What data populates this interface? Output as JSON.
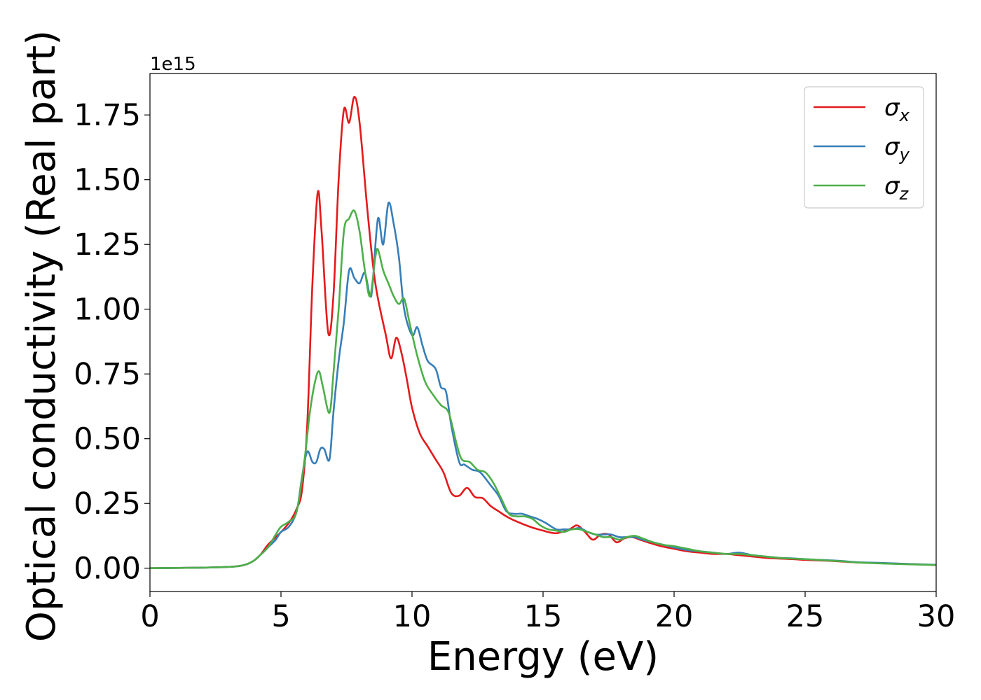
{
  "chart_data": {
    "type": "line",
    "xlabel": "Energy (eV)",
    "ylabel": "Optical conductivity (Real part)",
    "offset_text": "1e15",
    "xlim": [
      0,
      30
    ],
    "ylim": [
      -0.09,
      1.91
    ],
    "x_ticks": [
      0,
      5,
      10,
      15,
      20,
      25,
      30
    ],
    "x_tick_labels": [
      "0",
      "5",
      "10",
      "15",
      "20",
      "25",
      "30"
    ],
    "y_ticks": [
      0.0,
      0.25,
      0.5,
      0.75,
      1.0,
      1.25,
      1.5,
      1.75
    ],
    "y_tick_labels": [
      "0.00",
      "0.25",
      "0.50",
      "0.75",
      "1.00",
      "1.25",
      "1.50",
      "1.75"
    ],
    "y_scale_factor": "1e15",
    "grid": false,
    "legend_position": "top-right",
    "series": [
      {
        "name": "σx",
        "symbol": "σ",
        "subscript": "x",
        "color": "#e41a1c",
        "points": [
          [
            0,
            0
          ],
          [
            2,
            0.002
          ],
          [
            3,
            0.005
          ],
          [
            3.5,
            0.01
          ],
          [
            3.9,
            0.025
          ],
          [
            4.2,
            0.05
          ],
          [
            4.5,
            0.09
          ],
          [
            4.8,
            0.12
          ],
          [
            5.1,
            0.15
          ],
          [
            5.4,
            0.19
          ],
          [
            5.6,
            0.23
          ],
          [
            5.8,
            0.3
          ],
          [
            6.0,
            0.55
          ],
          [
            6.2,
            1.1
          ],
          [
            6.4,
            1.45
          ],
          [
            6.55,
            1.3
          ],
          [
            6.8,
            0.91
          ],
          [
            7.0,
            1.05
          ],
          [
            7.2,
            1.5
          ],
          [
            7.4,
            1.77
          ],
          [
            7.6,
            1.72
          ],
          [
            7.8,
            1.82
          ],
          [
            8.0,
            1.72
          ],
          [
            8.3,
            1.38
          ],
          [
            8.6,
            1.1
          ],
          [
            9.0,
            0.9
          ],
          [
            9.2,
            0.81
          ],
          [
            9.4,
            0.89
          ],
          [
            9.6,
            0.83
          ],
          [
            9.8,
            0.73
          ],
          [
            10.0,
            0.62
          ],
          [
            10.3,
            0.52
          ],
          [
            10.6,
            0.47
          ],
          [
            10.9,
            0.42
          ],
          [
            11.2,
            0.37
          ],
          [
            11.5,
            0.29
          ],
          [
            11.8,
            0.28
          ],
          [
            12.1,
            0.31
          ],
          [
            12.4,
            0.275
          ],
          [
            12.7,
            0.27
          ],
          [
            13.0,
            0.24
          ],
          [
            13.3,
            0.22
          ],
          [
            13.6,
            0.2
          ],
          [
            14.0,
            0.18
          ],
          [
            14.5,
            0.16
          ],
          [
            15.0,
            0.145
          ],
          [
            15.5,
            0.135
          ],
          [
            16.0,
            0.15
          ],
          [
            16.3,
            0.165
          ],
          [
            16.6,
            0.14
          ],
          [
            16.9,
            0.11
          ],
          [
            17.2,
            0.13
          ],
          [
            17.5,
            0.13
          ],
          [
            17.8,
            0.1
          ],
          [
            18.1,
            0.115
          ],
          [
            18.4,
            0.12
          ],
          [
            18.7,
            0.11
          ],
          [
            19.0,
            0.1
          ],
          [
            19.5,
            0.085
          ],
          [
            20.0,
            0.075
          ],
          [
            20.5,
            0.065
          ],
          [
            21.0,
            0.06
          ],
          [
            21.5,
            0.055
          ],
          [
            22.0,
            0.055
          ],
          [
            22.5,
            0.05
          ],
          [
            23.0,
            0.045
          ],
          [
            23.5,
            0.04
          ],
          [
            24.0,
            0.037
          ],
          [
            24.5,
            0.035
          ],
          [
            25.0,
            0.032
          ],
          [
            25.5,
            0.03
          ],
          [
            26.0,
            0.028
          ],
          [
            26.5,
            0.025
          ],
          [
            27.0,
            0.022
          ],
          [
            28.0,
            0.019
          ],
          [
            29.0,
            0.016
          ],
          [
            30.0,
            0.012
          ]
        ]
      },
      {
        "name": "σy",
        "symbol": "σ",
        "subscript": "y",
        "color": "#377eb8",
        "points": [
          [
            0,
            0
          ],
          [
            2,
            0.002
          ],
          [
            3,
            0.005
          ],
          [
            3.5,
            0.01
          ],
          [
            3.9,
            0.025
          ],
          [
            4.2,
            0.05
          ],
          [
            4.5,
            0.08
          ],
          [
            4.8,
            0.11
          ],
          [
            5.0,
            0.14
          ],
          [
            5.3,
            0.16
          ],
          [
            5.6,
            0.22
          ],
          [
            5.8,
            0.35
          ],
          [
            6.0,
            0.45
          ],
          [
            6.2,
            0.41
          ],
          [
            6.35,
            0.41
          ],
          [
            6.5,
            0.46
          ],
          [
            6.65,
            0.46
          ],
          [
            6.85,
            0.42
          ],
          [
            7.0,
            0.6
          ],
          [
            7.2,
            0.8
          ],
          [
            7.4,
            0.95
          ],
          [
            7.6,
            1.15
          ],
          [
            7.8,
            1.12
          ],
          [
            8.0,
            1.1
          ],
          [
            8.2,
            1.14
          ],
          [
            8.4,
            1.05
          ],
          [
            8.5,
            1.1
          ],
          [
            8.7,
            1.35
          ],
          [
            8.9,
            1.25
          ],
          [
            9.1,
            1.41
          ],
          [
            9.3,
            1.33
          ],
          [
            9.5,
            1.2
          ],
          [
            9.7,
            1.0
          ],
          [
            10.0,
            0.9
          ],
          [
            10.2,
            0.93
          ],
          [
            10.4,
            0.86
          ],
          [
            10.6,
            0.8
          ],
          [
            10.9,
            0.77
          ],
          [
            11.1,
            0.7
          ],
          [
            11.3,
            0.68
          ],
          [
            11.5,
            0.55
          ],
          [
            11.8,
            0.41
          ],
          [
            12.0,
            0.4
          ],
          [
            12.3,
            0.38
          ],
          [
            12.6,
            0.37
          ],
          [
            13.0,
            0.32
          ],
          [
            13.3,
            0.28
          ],
          [
            13.6,
            0.22
          ],
          [
            13.9,
            0.21
          ],
          [
            14.2,
            0.21
          ],
          [
            14.5,
            0.2
          ],
          [
            14.8,
            0.19
          ],
          [
            15.1,
            0.175
          ],
          [
            15.5,
            0.15
          ],
          [
            15.8,
            0.15
          ],
          [
            16.1,
            0.15
          ],
          [
            16.4,
            0.155
          ],
          [
            16.7,
            0.14
          ],
          [
            17.0,
            0.13
          ],
          [
            17.3,
            0.13
          ],
          [
            17.6,
            0.13
          ],
          [
            17.9,
            0.12
          ],
          [
            18.2,
            0.12
          ],
          [
            18.5,
            0.12
          ],
          [
            18.8,
            0.11
          ],
          [
            19.2,
            0.1
          ],
          [
            19.6,
            0.09
          ],
          [
            20.0,
            0.08
          ],
          [
            20.5,
            0.07
          ],
          [
            21.0,
            0.065
          ],
          [
            21.5,
            0.06
          ],
          [
            22.0,
            0.055
          ],
          [
            22.5,
            0.06
          ],
          [
            23.0,
            0.05
          ],
          [
            23.5,
            0.045
          ],
          [
            24.0,
            0.04
          ],
          [
            24.5,
            0.038
          ],
          [
            25.0,
            0.035
          ],
          [
            25.5,
            0.032
          ],
          [
            26.0,
            0.03
          ],
          [
            26.5,
            0.027
          ],
          [
            27.0,
            0.023
          ],
          [
            28.0,
            0.02
          ],
          [
            29.0,
            0.016
          ],
          [
            30.0,
            0.013
          ]
        ]
      },
      {
        "name": "σz",
        "symbol": "σ",
        "subscript": "z",
        "color": "#4daf4a",
        "points": [
          [
            0,
            0
          ],
          [
            2,
            0.002
          ],
          [
            3,
            0.005
          ],
          [
            3.5,
            0.01
          ],
          [
            3.9,
            0.025
          ],
          [
            4.2,
            0.05
          ],
          [
            4.5,
            0.08
          ],
          [
            4.8,
            0.13
          ],
          [
            5.0,
            0.16
          ],
          [
            5.3,
            0.18
          ],
          [
            5.6,
            0.22
          ],
          [
            5.9,
            0.42
          ],
          [
            6.1,
            0.6
          ],
          [
            6.3,
            0.72
          ],
          [
            6.45,
            0.76
          ],
          [
            6.6,
            0.7
          ],
          [
            6.85,
            0.6
          ],
          [
            7.0,
            0.75
          ],
          [
            7.2,
            1.0
          ],
          [
            7.4,
            1.3
          ],
          [
            7.6,
            1.35
          ],
          [
            7.8,
            1.38
          ],
          [
            8.0,
            1.3
          ],
          [
            8.2,
            1.15
          ],
          [
            8.4,
            1.05
          ],
          [
            8.6,
            1.2
          ],
          [
            8.7,
            1.23
          ],
          [
            8.9,
            1.15
          ],
          [
            9.1,
            1.1
          ],
          [
            9.3,
            1.05
          ],
          [
            9.5,
            1.02
          ],
          [
            9.7,
            1.04
          ],
          [
            9.9,
            0.95
          ],
          [
            10.2,
            0.82
          ],
          [
            10.5,
            0.72
          ],
          [
            10.8,
            0.67
          ],
          [
            11.1,
            0.63
          ],
          [
            11.4,
            0.6
          ],
          [
            11.7,
            0.48
          ],
          [
            11.9,
            0.42
          ],
          [
            12.2,
            0.41
          ],
          [
            12.5,
            0.38
          ],
          [
            12.8,
            0.37
          ],
          [
            13.1,
            0.33
          ],
          [
            13.4,
            0.27
          ],
          [
            13.7,
            0.21
          ],
          [
            14.0,
            0.2
          ],
          [
            14.3,
            0.2
          ],
          [
            14.6,
            0.19
          ],
          [
            14.9,
            0.165
          ],
          [
            15.2,
            0.15
          ],
          [
            15.5,
            0.145
          ],
          [
            15.8,
            0.14
          ],
          [
            16.1,
            0.15
          ],
          [
            16.4,
            0.15
          ],
          [
            16.7,
            0.14
          ],
          [
            17.0,
            0.13
          ],
          [
            17.3,
            0.12
          ],
          [
            17.6,
            0.12
          ],
          [
            17.9,
            0.11
          ],
          [
            18.2,
            0.12
          ],
          [
            18.5,
            0.125
          ],
          [
            18.8,
            0.115
          ],
          [
            19.2,
            0.1
          ],
          [
            19.6,
            0.09
          ],
          [
            20.0,
            0.085
          ],
          [
            20.5,
            0.075
          ],
          [
            21.0,
            0.065
          ],
          [
            21.5,
            0.06
          ],
          [
            22.0,
            0.055
          ],
          [
            22.5,
            0.055
          ],
          [
            23.0,
            0.05
          ],
          [
            23.5,
            0.045
          ],
          [
            24.0,
            0.04
          ],
          [
            24.5,
            0.037
          ],
          [
            25.0,
            0.035
          ],
          [
            25.5,
            0.032
          ],
          [
            26.0,
            0.029
          ],
          [
            26.5,
            0.026
          ],
          [
            27.0,
            0.022
          ],
          [
            28.0,
            0.018
          ],
          [
            29.0,
            0.015
          ],
          [
            30.0,
            0.012
          ]
        ]
      }
    ]
  }
}
